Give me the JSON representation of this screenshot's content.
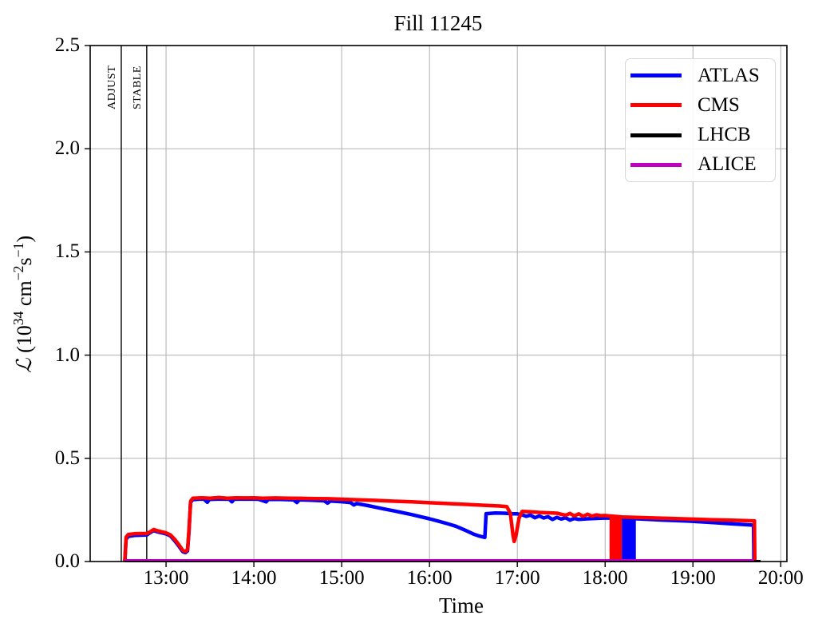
{
  "chart_data": {
    "type": "line",
    "title": "Fill 11245",
    "xlabel": "Time",
    "ylabel": "L (10^34 cm^-2 s^-1)",
    "ylabel_runs": [
      {
        "text": "ℒ",
        "sup": false,
        "script": true
      },
      {
        "text": " (10",
        "sup": false
      },
      {
        "text": "34",
        "sup": true
      },
      {
        "text": " cm",
        "sup": false
      },
      {
        "text": "−2",
        "sup": true
      },
      {
        "text": "s",
        "sup": false
      },
      {
        "text": "−1",
        "sup": true
      },
      {
        "text": ")",
        "sup": false
      }
    ],
    "x_range_hours": [
      12.136,
      20.07
    ],
    "y_range": [
      0,
      2.5
    ],
    "grid": true,
    "legend_position": "upper right",
    "x_ticks": [
      {
        "t": 13,
        "label": "13:00"
      },
      {
        "t": 14,
        "label": "14:00"
      },
      {
        "t": 15,
        "label": "15:00"
      },
      {
        "t": 16,
        "label": "16:00"
      },
      {
        "t": 17,
        "label": "17:00"
      },
      {
        "t": 18,
        "label": "18:00"
      },
      {
        "t": 19,
        "label": "19:00"
      },
      {
        "t": 20,
        "label": "20:00"
      }
    ],
    "y_ticks": [
      {
        "v": 0.0,
        "label": "0.0"
      },
      {
        "v": 0.5,
        "label": "0.5"
      },
      {
        "v": 1.0,
        "label": "1.0"
      },
      {
        "v": 1.5,
        "label": "1.5"
      },
      {
        "v": 2.0,
        "label": "2.0"
      },
      {
        "v": 2.5,
        "label": "2.5"
      }
    ],
    "annotations": [
      {
        "label": "ADJUST",
        "t": 12.49
      },
      {
        "label": "STABLE",
        "t": 12.78
      }
    ],
    "series": [
      {
        "name": "ATLAS",
        "color": "#0000ff",
        "points": [
          [
            12.53,
            0.0
          ],
          [
            12.545,
            0.108
          ],
          [
            12.57,
            0.122
          ],
          [
            12.65,
            0.127
          ],
          [
            12.78,
            0.129
          ],
          [
            12.82,
            0.14
          ],
          [
            12.86,
            0.15
          ],
          [
            12.9,
            0.144
          ],
          [
            12.95,
            0.139
          ],
          [
            13.0,
            0.134
          ],
          [
            13.05,
            0.124
          ],
          [
            13.1,
            0.1
          ],
          [
            13.15,
            0.072
          ],
          [
            13.19,
            0.048
          ],
          [
            13.22,
            0.043
          ],
          [
            13.245,
            0.052
          ],
          [
            13.262,
            0.15
          ],
          [
            13.278,
            0.285
          ],
          [
            13.3,
            0.299
          ],
          [
            13.36,
            0.302
          ],
          [
            13.43,
            0.303
          ],
          [
            13.47,
            0.287
          ],
          [
            13.495,
            0.301
          ],
          [
            13.6,
            0.303
          ],
          [
            13.72,
            0.302
          ],
          [
            13.75,
            0.289
          ],
          [
            13.775,
            0.302
          ],
          [
            13.9,
            0.303
          ],
          [
            14.05,
            0.302
          ],
          [
            14.14,
            0.289
          ],
          [
            14.165,
            0.301
          ],
          [
            14.3,
            0.301
          ],
          [
            14.45,
            0.299
          ],
          [
            14.49,
            0.286
          ],
          [
            14.52,
            0.299
          ],
          [
            14.65,
            0.297
          ],
          [
            14.8,
            0.294
          ],
          [
            14.84,
            0.283
          ],
          [
            14.87,
            0.293
          ],
          [
            15.0,
            0.29
          ],
          [
            15.1,
            0.286
          ],
          [
            15.14,
            0.274
          ],
          [
            15.17,
            0.281
          ],
          [
            15.3,
            0.271
          ],
          [
            15.4,
            0.262
          ],
          [
            15.5,
            0.253
          ],
          [
            15.6,
            0.245
          ],
          [
            15.7,
            0.236
          ],
          [
            15.8,
            0.227
          ],
          [
            15.9,
            0.217
          ],
          [
            16.0,
            0.207
          ],
          [
            16.1,
            0.196
          ],
          [
            16.2,
            0.184
          ],
          [
            16.3,
            0.171
          ],
          [
            16.4,
            0.153
          ],
          [
            16.5,
            0.133
          ],
          [
            16.57,
            0.123
          ],
          [
            16.63,
            0.117
          ],
          [
            16.645,
            0.232
          ],
          [
            16.75,
            0.235
          ],
          [
            16.85,
            0.234
          ],
          [
            16.95,
            0.231
          ],
          [
            17.0,
            0.231
          ],
          [
            17.05,
            0.227
          ],
          [
            17.1,
            0.219
          ],
          [
            17.15,
            0.225
          ],
          [
            17.2,
            0.212
          ],
          [
            17.25,
            0.221
          ],
          [
            17.3,
            0.211
          ],
          [
            17.35,
            0.217
          ],
          [
            17.4,
            0.204
          ],
          [
            17.45,
            0.214
          ],
          [
            17.5,
            0.206
          ],
          [
            17.55,
            0.212
          ],
          [
            17.6,
            0.201
          ],
          [
            17.65,
            0.209
          ],
          [
            17.7,
            0.204
          ],
          [
            17.8,
            0.207
          ],
          [
            17.9,
            0.209
          ],
          [
            18.0,
            0.211
          ],
          [
            18.1,
            0.21
          ],
          [
            18.17,
            0.209
          ],
          [
            18.36,
            0.207
          ],
          [
            18.5,
            0.204
          ],
          [
            18.65,
            0.201
          ],
          [
            18.8,
            0.198
          ],
          [
            18.95,
            0.196
          ],
          [
            19.1,
            0.192
          ],
          [
            19.25,
            0.188
          ],
          [
            19.4,
            0.184
          ],
          [
            19.55,
            0.18
          ],
          [
            19.69,
            0.176
          ],
          [
            19.695,
            0.0
          ]
        ]
      },
      {
        "name": "CMS",
        "color": "#ff0000",
        "points": [
          [
            12.53,
            0.0
          ],
          [
            12.545,
            0.118
          ],
          [
            12.57,
            0.131
          ],
          [
            12.65,
            0.135
          ],
          [
            12.78,
            0.136
          ],
          [
            12.82,
            0.144
          ],
          [
            12.86,
            0.155
          ],
          [
            12.9,
            0.149
          ],
          [
            12.95,
            0.144
          ],
          [
            13.0,
            0.139
          ],
          [
            13.05,
            0.129
          ],
          [
            13.1,
            0.107
          ],
          [
            13.15,
            0.079
          ],
          [
            13.19,
            0.054
          ],
          [
            13.22,
            0.048
          ],
          [
            13.245,
            0.058
          ],
          [
            13.262,
            0.16
          ],
          [
            13.28,
            0.292
          ],
          [
            13.305,
            0.307
          ],
          [
            13.4,
            0.309
          ],
          [
            13.5,
            0.307
          ],
          [
            13.6,
            0.31
          ],
          [
            13.7,
            0.307
          ],
          [
            13.8,
            0.309
          ],
          [
            13.9,
            0.308
          ],
          [
            14.0,
            0.309
          ],
          [
            14.1,
            0.307
          ],
          [
            14.25,
            0.308
          ],
          [
            14.4,
            0.307
          ],
          [
            14.55,
            0.306
          ],
          [
            14.7,
            0.305
          ],
          [
            14.85,
            0.304
          ],
          [
            15.0,
            0.302
          ],
          [
            15.2,
            0.299
          ],
          [
            15.4,
            0.296
          ],
          [
            15.6,
            0.292
          ],
          [
            15.8,
            0.289
          ],
          [
            16.0,
            0.285
          ],
          [
            16.2,
            0.281
          ],
          [
            16.4,
            0.277
          ],
          [
            16.6,
            0.273
          ],
          [
            16.8,
            0.269
          ],
          [
            16.88,
            0.266
          ],
          [
            16.92,
            0.235
          ],
          [
            16.95,
            0.13
          ],
          [
            16.965,
            0.097
          ],
          [
            16.985,
            0.125
          ],
          [
            17.02,
            0.21
          ],
          [
            17.055,
            0.243
          ],
          [
            17.15,
            0.241
          ],
          [
            17.25,
            0.238
          ],
          [
            17.35,
            0.236
          ],
          [
            17.45,
            0.234
          ],
          [
            17.55,
            0.224
          ],
          [
            17.6,
            0.233
          ],
          [
            17.65,
            0.221
          ],
          [
            17.7,
            0.231
          ],
          [
            17.75,
            0.219
          ],
          [
            17.8,
            0.229
          ],
          [
            17.85,
            0.22
          ],
          [
            17.9,
            0.226
          ],
          [
            17.95,
            0.222
          ],
          [
            18.0,
            0.223
          ],
          [
            18.045,
            0.221
          ],
          [
            18.195,
            0.216
          ],
          [
            18.35,
            0.214
          ],
          [
            18.5,
            0.212
          ],
          [
            18.65,
            0.21
          ],
          [
            18.8,
            0.208
          ],
          [
            18.95,
            0.206
          ],
          [
            19.1,
            0.204
          ],
          [
            19.25,
            0.202
          ],
          [
            19.4,
            0.201
          ],
          [
            19.55,
            0.199
          ],
          [
            19.7,
            0.197
          ],
          [
            19.705,
            0.0
          ]
        ]
      },
      {
        "name": "LHCB",
        "color": "#000000",
        "points": [
          [
            12.53,
            0.002
          ],
          [
            19.77,
            0.002
          ]
        ]
      },
      {
        "name": "ALICE",
        "color": "#bf00bf",
        "points": [
          [
            12.53,
            0.005
          ],
          [
            19.68,
            0.005
          ],
          [
            19.683,
            0.0
          ]
        ]
      }
    ],
    "dropout_bands": [
      {
        "series": "ATLAS",
        "color": "#0000ff",
        "t": [
          18.19,
          18.35
        ],
        "v": [
          0.0,
          0.209
        ]
      },
      {
        "series": "CMS",
        "color": "#ff0000",
        "t": [
          18.05,
          18.19
        ],
        "v": [
          0.0,
          0.221
        ]
      }
    ]
  }
}
